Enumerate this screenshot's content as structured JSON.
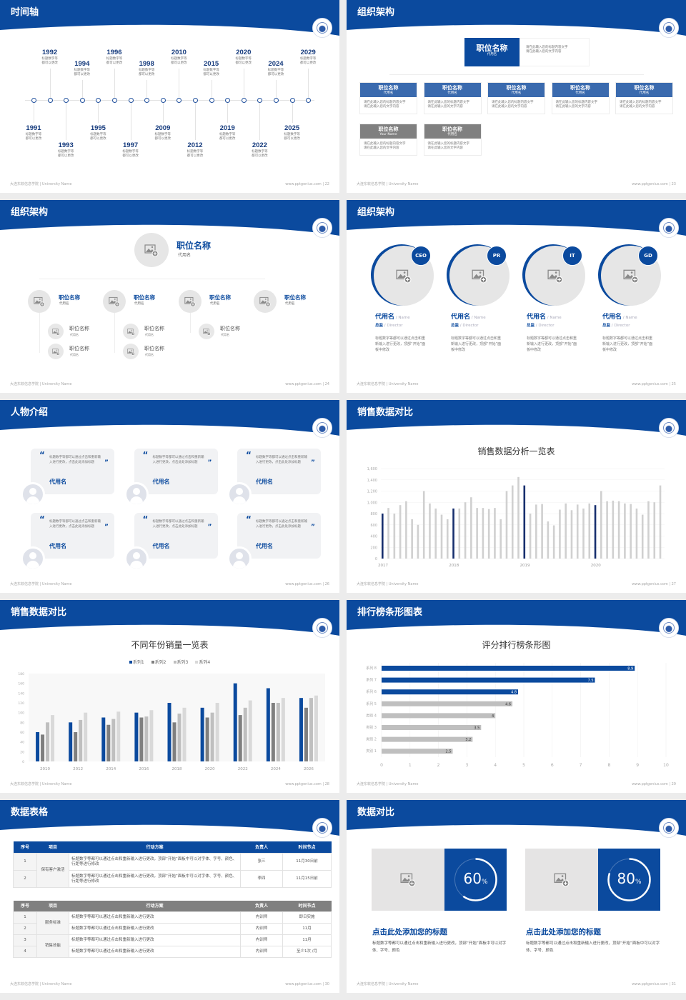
{
  "footer": {
    "left": "大连东软信息学院 | University Name",
    "right": "www.pptgenius.com"
  },
  "colors": {
    "primary": "#0b4a9e",
    "navy": "#172f6e",
    "box_blue": "#3a6aae",
    "gray_box": "#808080",
    "gray_bar": "#d0d0d0",
    "card_bg": "#f1f2f4"
  },
  "icons": {
    "logo": "university-seal-icon",
    "image_placeholder": "image-add-icon",
    "avatar": "user-icon",
    "quote": "quote-icon"
  },
  "slides": [
    {
      "title": "时间轴",
      "page": "22",
      "timeline": [
        {
          "year": "1991",
          "text": "标题数字等都可以更改"
        },
        {
          "year": "1992",
          "text": "标题数字等都可以更改"
        },
        {
          "year": "1993",
          "text": "标题数字等都可以更改"
        },
        {
          "year": "1994",
          "text": "标题数字等都可以更改"
        },
        {
          "year": "1995",
          "text": "标题数字等都可以更改"
        },
        {
          "year": "1996",
          "text": "标题数字等都可以更改"
        },
        {
          "year": "1997",
          "text": "标题数字等都可以更改"
        },
        {
          "year": "1998",
          "text": "标题数字等都可以更改"
        },
        {
          "year": "2009",
          "text": "标题数字等都可以更改"
        },
        {
          "year": "2010",
          "text": "标题数字等都可以更改"
        },
        {
          "year": "2012",
          "text": "标题数字等都可以更改"
        },
        {
          "year": "2015",
          "text": "标题数字等都可以更改"
        },
        {
          "year": "2019",
          "text": "标题数字等都可以更改"
        },
        {
          "year": "2020",
          "text": "标题数字等都可以更改"
        },
        {
          "year": "2022",
          "text": "标题数字等都可以更改"
        },
        {
          "year": "2024",
          "text": "标题数字等都可以更改"
        },
        {
          "year": "2025",
          "text": "标题数字等都可以更改"
        },
        {
          "year": "2029",
          "text": "标题数字等都可以更改"
        }
      ]
    },
    {
      "title": "组织架构",
      "page": "23",
      "top": {
        "title": "职位名称",
        "sub": "代用名",
        "desc": [
          "请在此输入您的标题内容文字",
          "请在此输入您的文字内容"
        ]
      },
      "boxes": [
        {
          "title": "职位名称",
          "sub": "代用名",
          "style": "blue",
          "desc": [
            "请在此输入您的标题内容文字",
            "请在此输入您的文字内容"
          ]
        },
        {
          "title": "职位名称",
          "sub": "代用名",
          "style": "blue",
          "desc": [
            "请在此输入您的标题内容文字",
            "请在此输入您的文字内容"
          ]
        },
        {
          "title": "职位名称",
          "sub": "代用名",
          "style": "blue",
          "desc": [
            "请在此输入您的标题内容文字",
            "请在此输入您的文字内容"
          ]
        },
        {
          "title": "职位名称",
          "sub": "代用名",
          "style": "blue",
          "desc": [
            "请在此输入您的标题内容文字",
            "请在此输入您的文字内容"
          ]
        },
        {
          "title": "职位名称",
          "sub": "代用名",
          "style": "blue",
          "desc": [
            "请在此输入您的标题内容文字",
            "请在此输入您的文字内容"
          ]
        },
        {
          "title": "职位名称",
          "sub": "Your Name",
          "style": "gray",
          "desc": [
            "请在此输入您的标题内容文字",
            "请在此输入您的文字内容"
          ]
        },
        {
          "title": "职位名称",
          "sub": "代用名",
          "style": "gray",
          "desc": [
            "请在此输入您的标题内容文字",
            "请在此输入您的文字内容"
          ]
        }
      ]
    },
    {
      "title": "组织架构",
      "page": "24",
      "top": {
        "title": "职位名称",
        "sub": "代用名"
      },
      "members": [
        {
          "title": "职位名称",
          "sub": "代用名",
          "children": [
            {
              "title": "职位名称",
              "sub": "代用名"
            },
            {
              "title": "职位名称",
              "sub": "代用名"
            }
          ]
        },
        {
          "title": "职位名称",
          "sub": "代用名",
          "children": [
            {
              "title": "职位名称",
              "sub": "代用名"
            },
            {
              "title": "职位名称",
              "sub": "代用名"
            }
          ]
        },
        {
          "title": "职位名称",
          "sub": "代用名",
          "children": [
            {
              "title": "职位名称",
              "sub": "代用名"
            }
          ]
        },
        {
          "title": "职位名称",
          "sub": "代用名",
          "children": []
        }
      ]
    },
    {
      "title": "组织架构",
      "page": "25",
      "people": [
        {
          "badge": "CEO",
          "name": "代用名",
          "name_en": "/ Name",
          "role": "总监",
          "role_en": "/ Director",
          "desc": "标题数字等都可以通过点击和重新输入进行更改，顶部“开始”面板中修改"
        },
        {
          "badge": "PR",
          "name": "代用名",
          "name_en": "/ Name",
          "role": "总监",
          "role_en": "/ Director",
          "desc": "标题数字等都可以通过点击和重新输入进行更改，顶部“开始”面板中修改"
        },
        {
          "badge": "IT",
          "name": "代用名",
          "name_en": "/ Name",
          "role": "总监",
          "role_en": "/ Director",
          "desc": "标题数字等都可以通过点击和重新输入进行更改，顶部“开始”面板中修改"
        },
        {
          "badge": "GD",
          "name": "代用名",
          "name_en": "/ Name",
          "role": "总监",
          "role_en": "/ Director",
          "desc": "标题数字等都可以通过点击和重新输入进行更改，顶部“开始”面板中修改"
        }
      ]
    },
    {
      "title": "人物介绍",
      "page": "26",
      "cards": [
        {
          "quote": "标题数字等都可以通过点击和重新输入进行更改，点击此处添加标题",
          "name": "代用名"
        },
        {
          "quote": "标题数字等都可以通过点击和重新输入进行更改，点击此处添加标题",
          "name": "代用名"
        },
        {
          "quote": "标题数字等都可以通过点击和重新输入进行更改，点击此处添加标题",
          "name": "代用名"
        },
        {
          "quote": "标题数字等都可以通过点击和重新输入进行更改，点击此处添加标题",
          "name": "代用名"
        },
        {
          "quote": "标题数字等都可以通过点击和重新输入进行更改，点击此处添加标题",
          "name": "代用名"
        },
        {
          "quote": "标题数字等都可以通过点击和重新输入进行更改，点击此处添加标题",
          "name": "代用名"
        }
      ]
    },
    {
      "title": "销售数据对比",
      "page": "27",
      "chart": 0
    },
    {
      "title": "销售数据对比",
      "page": "28",
      "chart": 1
    },
    {
      "title": "排行榜条形图表",
      "page": "29",
      "chart": 2
    },
    {
      "title": "数据表格",
      "page": "30",
      "tables": [
        {
          "header_color": "#0b4a9e",
          "columns": [
            "序号",
            "项目",
            "行动方案",
            "负责人",
            "时间节点"
          ],
          "groups": [
            {
              "item": "保有客户激活",
              "rows": [
                {
                  "no": "1",
                  "plan": "标题数字等都可以通过点击和重新输入进行更改，顶部“开始”面板中可以对字体、字号、颜色、行距等进行修改",
                  "owner": "张三",
                  "time": "11月30日前"
                },
                {
                  "no": "2",
                  "plan": "标题数字等都可以通过点击和重新输入进行更改，顶部“开始”面板中可以对字体、字号、颜色、行距等进行修改",
                  "owner": "李四",
                  "time": "11月15日前"
                }
              ]
            }
          ]
        },
        {
          "header_color": "#808080",
          "columns": [
            "序号",
            "项目",
            "行动方案",
            "负责人",
            "时间节点"
          ],
          "groups": [
            {
              "item": "服务标准",
              "rows": [
                {
                  "no": "1",
                  "plan": "标题数字等都可以通过点击和重新输入进行更改",
                  "owner": "内训师",
                  "time": "即日实施"
                },
                {
                  "no": "2",
                  "plan": "标题数字等都可以通过点击和重新输入进行更改",
                  "owner": "内训师",
                  "time": "11月"
                }
              ]
            },
            {
              "item": "销售技能",
              "rows": [
                {
                  "no": "3",
                  "plan": "标题数字等都可以通过点击和重新输入进行更改",
                  "owner": "内训师",
                  "time": "11月"
                },
                {
                  "no": "4",
                  "plan": "标题数字等都可以通过点击和重新输入进行更改",
                  "owner": "内训师",
                  "time": "至少1次 /月"
                }
              ]
            }
          ]
        }
      ]
    },
    {
      "title": "数据对比",
      "page": "31",
      "panels": [
        {
          "percent": 60,
          "value": "60",
          "unit": "%",
          "heading": "点击此处添加您的标题",
          "desc": "标题数字等都可以通过点击和重新输入进行更改，顶部“开始”面板中可以对字体、字号、颜色"
        },
        {
          "percent": 80,
          "value": "80",
          "unit": "%",
          "heading": "点击此处添加您的标题",
          "desc": "标题数字等都可以通过点击和重新输入进行更改，顶部“开始”面板中可以对字体、字号、颜色"
        }
      ]
    }
  ],
  "chart_data": [
    {
      "type": "bar",
      "title": "销售数据分析一览表",
      "ylim": [
        0,
        1600
      ],
      "yticks": [
        "0",
        "200",
        "400",
        "600",
        "800",
        "1,000",
        "1,200",
        "1,400",
        "1,600"
      ],
      "xticks": [
        "2017",
        "2018",
        "2019",
        "2020"
      ],
      "grid": true,
      "values": [
        800,
        900,
        800,
        950,
        1020,
        700,
        600,
        1200,
        980,
        890,
        780,
        700,
        890,
        890,
        1000,
        1090,
        900,
        900,
        880,
        900,
        700,
        1200,
        1300,
        1450,
        1300,
        800,
        960,
        970,
        660,
        590,
        870,
        980,
        860,
        960,
        890,
        980,
        950,
        1200,
        1020,
        1030,
        1020,
        980,
        970,
        890,
        780,
        1020,
        1000,
        1300
      ],
      "highlight_every": 12
    },
    {
      "type": "bar",
      "title": "不同年份销量一览表",
      "ylim": [
        0,
        180
      ],
      "yticks": [
        "0",
        "20",
        "40",
        "60",
        "80",
        "100",
        "120",
        "140",
        "160",
        "180"
      ],
      "categories": [
        "2010",
        "2012",
        "2014",
        "2016",
        "2018",
        "2020",
        "2022",
        "2024",
        "2026"
      ],
      "legend": "top",
      "series": [
        {
          "name": "系列1",
          "color": "#0b4a9e",
          "values": [
            60,
            80,
            90,
            100,
            120,
            110,
            160,
            150,
            130
          ]
        },
        {
          "name": "系列2",
          "color": "#7f7f7f",
          "values": [
            55,
            60,
            75,
            90,
            80,
            90,
            95,
            120,
            110
          ]
        },
        {
          "name": "系列3",
          "color": "#bfbfbf",
          "values": [
            80,
            85,
            87,
            92,
            98,
            100,
            110,
            120,
            130
          ]
        },
        {
          "name": "系列4",
          "color": "#d9d9d9",
          "values": [
            95,
            100,
            102,
            105,
            110,
            120,
            125,
            130,
            135
          ]
        }
      ]
    },
    {
      "type": "bar",
      "orientation": "horizontal",
      "title": "评分排行榜条形图",
      "xlim": [
        0,
        10
      ],
      "xticks": [
        "0",
        "1",
        "2",
        "3",
        "4",
        "5",
        "6",
        "7",
        "8",
        "9",
        "10"
      ],
      "categories": [
        "系列 8",
        "系列 7",
        "系列 6",
        "系列 5",
        "类别 4",
        "类别 3",
        "类别 2",
        "类别 1"
      ],
      "values": [
        8.9,
        7.5,
        4.8,
        4.6,
        4,
        3.5,
        3.2,
        2.5
      ],
      "labels": [
        "8.9",
        "7.5",
        "4.8",
        "4.6",
        "4",
        "3.5",
        "3.2",
        "2.5"
      ],
      "colors": [
        "#0b4a9e",
        "#0b4a9e",
        "#0b4a9e",
        "#bfbfbf",
        "#bfbfbf",
        "#bfbfbf",
        "#bfbfbf",
        "#bfbfbf"
      ]
    }
  ]
}
